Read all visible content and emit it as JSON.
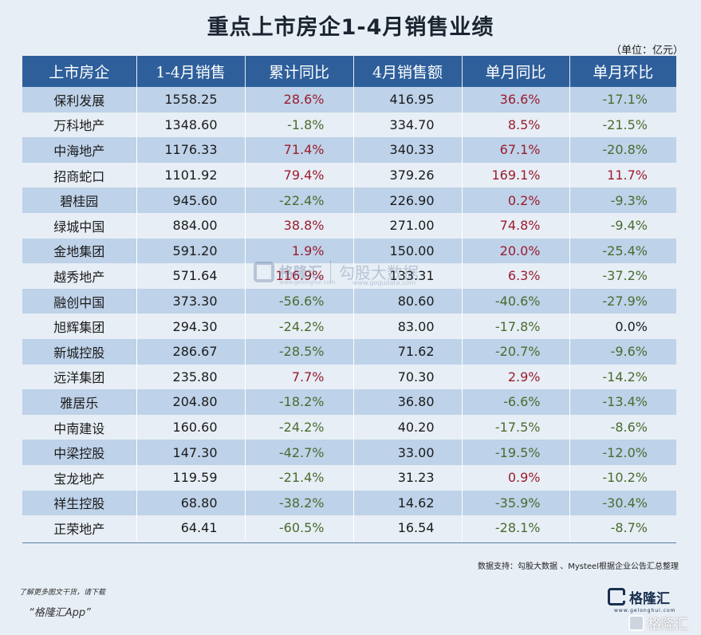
{
  "title": "重点上市房企1-4月销售业绩",
  "unit": "（单位：亿元）",
  "chart_data": {
    "type": "table",
    "columns": [
      "上市房企",
      "1-4月销售",
      "累计同比",
      "4月销售额",
      "单月同比",
      "单月环比"
    ],
    "rows": [
      [
        "保利发展",
        "1558.25",
        "28.6%",
        "416.95",
        "36.6%",
        "-17.1%"
      ],
      [
        "万科地产",
        "1348.60",
        "-1.8%",
        "334.70",
        "8.5%",
        "-21.5%"
      ],
      [
        "中海地产",
        "1176.33",
        "71.4%",
        "340.33",
        "67.1%",
        "-20.8%"
      ],
      [
        "招商蛇口",
        "1101.92",
        "79.4%",
        "379.26",
        "169.1%",
        "11.7%"
      ],
      [
        "碧桂园",
        "945.60",
        "-22.4%",
        "226.90",
        "0.2%",
        "-9.3%"
      ],
      [
        "绿城中国",
        "884.00",
        "38.8%",
        "271.00",
        "74.8%",
        "-9.4%"
      ],
      [
        "金地集团",
        "591.20",
        "1.9%",
        "150.00",
        "20.0%",
        "-25.4%"
      ],
      [
        "越秀地产",
        "571.64",
        "116.9%",
        "133.31",
        "6.3%",
        "-37.2%"
      ],
      [
        "融创中国",
        "373.30",
        "-56.6%",
        "80.60",
        "-40.6%",
        "-27.9%"
      ],
      [
        "旭辉集团",
        "294.30",
        "-24.2%",
        "83.00",
        "-17.8%",
        "0.0%"
      ],
      [
        "新城控股",
        "286.67",
        "-28.5%",
        "71.62",
        "-20.7%",
        "-9.6%"
      ],
      [
        "远洋集团",
        "235.80",
        "7.7%",
        "70.30",
        "2.9%",
        "-14.2%"
      ],
      [
        "雅居乐",
        "204.80",
        "-18.2%",
        "36.80",
        "-6.6%",
        "-13.4%"
      ],
      [
        "中南建设",
        "160.60",
        "-24.2%",
        "40.20",
        "-17.5%",
        "-8.6%"
      ],
      [
        "中梁控股",
        "147.30",
        "-42.7%",
        "33.00",
        "-19.5%",
        "-12.0%"
      ],
      [
        "宝龙地产",
        "119.59",
        "-21.4%",
        "31.23",
        "0.9%",
        "-10.2%"
      ],
      [
        "祥生控股",
        "68.80",
        "-38.2%",
        "14.62",
        "-35.9%",
        "-30.4%"
      ],
      [
        "正荣地产",
        "64.41",
        "-60.5%",
        "16.54",
        "-28.1%",
        "-8.7%"
      ]
    ],
    "colors": {
      "header_bg": "#2e5f9b",
      "row_alt_bg": "#bed2e9",
      "row_bg": "#e7eef5",
      "positive": "#9b1c2e",
      "negative": "#4a6b2f"
    }
  },
  "source": "数据支持：勾股大数据 、Mysteel根据企业公告汇总整理",
  "footer": {
    "note": "了解更多图文干货，请下载",
    "app": "“格隆汇App”"
  },
  "brand": {
    "name": "格隆汇",
    "url": "www.gelonghui.com"
  },
  "watermark": {
    "name": "格隆汇",
    "name2": "勾股大数据",
    "url1": "www.gelonghui.com",
    "url2": "www.gogudata.com"
  },
  "watermark_bottom": {
    "name": "格隆汇"
  }
}
